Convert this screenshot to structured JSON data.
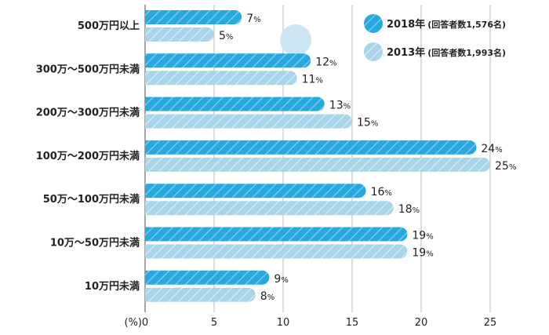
{
  "chart_data": {
    "type": "bar",
    "orientation": "horizontal",
    "title": "",
    "xlabel": "(%)",
    "ylabel": "",
    "xlim": [
      0,
      25
    ],
    "xticks": [
      0,
      5,
      10,
      15,
      20,
      25
    ],
    "grid": true,
    "legend_position": "top-right",
    "categories": [
      "500万円以上",
      "300万～500万円未満",
      "200万～300万円未満",
      "100万～200万円未満",
      "50万～100万円未満",
      "10万～50万円未満",
      "10万円未満"
    ],
    "series": [
      {
        "name": "2018年",
        "note": "(回答者数1,576名)",
        "color": "#29a8df",
        "values": [
          7,
          12,
          13,
          24,
          16,
          19,
          9
        ]
      },
      {
        "name": "2013年",
        "note": "(回答者数1,993名)",
        "color": "#a9d5ea",
        "values": [
          5,
          11,
          15,
          25,
          18,
          19,
          8
        ]
      }
    ],
    "value_suffix": "%"
  }
}
